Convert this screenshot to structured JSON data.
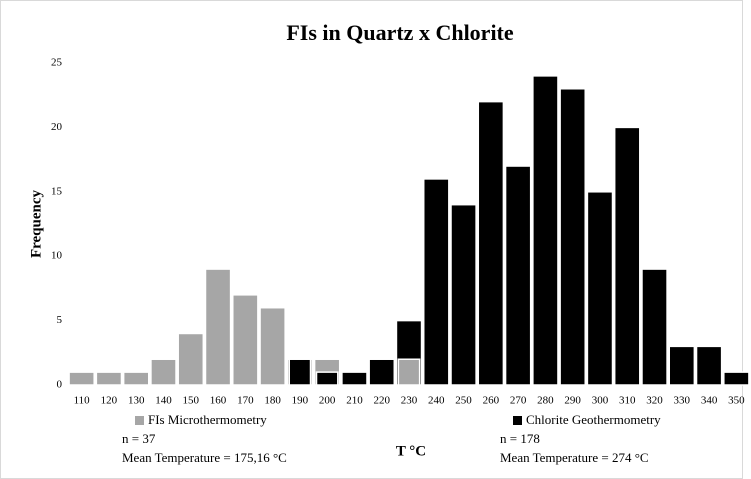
{
  "chart_data": {
    "type": "histogram",
    "title": "FIs in Quartz x Chlorite",
    "x_label": "T °C",
    "y_label": "Frequency",
    "categories": [
      "110",
      "120",
      "130",
      "140",
      "150",
      "160",
      "170",
      "180",
      "190",
      "200",
      "210",
      "220",
      "230",
      "240",
      "250",
      "260",
      "270",
      "280",
      "290",
      "300",
      "310",
      "320",
      "330",
      "340",
      "350"
    ],
    "series": [
      {
        "name": "FIs Microthermometry",
        "color": "#a6a6a6",
        "n": "n = 37",
        "mean": "Mean Temperature = 175,16 °C",
        "values": [
          1,
          1,
          1,
          2,
          4,
          9,
          7,
          6,
          2,
          2,
          0,
          0,
          2,
          0,
          0,
          0,
          0,
          0,
          0,
          0,
          0,
          0,
          0,
          0,
          0
        ]
      },
      {
        "name": "Chlorite Geothermometry",
        "color": "#000000",
        "n": "n = 178",
        "mean": "Mean Temperature = 274 °C",
        "values": [
          0,
          0,
          0,
          0,
          0,
          0,
          0,
          0,
          2,
          1,
          1,
          2,
          5,
          16,
          14,
          22,
          17,
          24,
          23,
          15,
          20,
          9,
          3,
          3,
          1
        ]
      }
    ],
    "ylim": [
      0,
      25
    ],
    "yticks": [
      0,
      5,
      10,
      15,
      20,
      25
    ],
    "grid": false
  }
}
